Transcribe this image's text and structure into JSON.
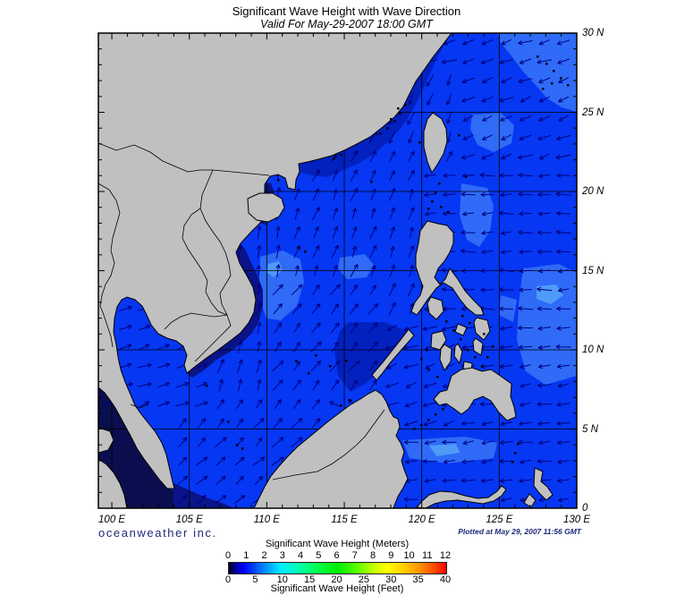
{
  "title": "Significant Wave Height with Wave Direction",
  "subtitle": "Valid For May-29-2007 18:00 GMT",
  "branding": "oceanweather inc.",
  "plotted_at": "Plotted at May 29, 2007 11:56 GMT",
  "axes": {
    "lon_tick_values": [
      100,
      105,
      110,
      115,
      120,
      125,
      130
    ],
    "lon_tick_labels": [
      "100 E",
      "105 E",
      "110 E",
      "115 E",
      "120 E",
      "125 E",
      "130 E"
    ],
    "lat_tick_values": [
      30,
      25,
      20,
      15,
      10,
      5,
      0
    ],
    "lat_tick_labels": [
      "30 N",
      "25 N",
      "20 N",
      "15 N",
      "10 N",
      "5 N",
      "0"
    ]
  },
  "legend": {
    "meters_title": "Significant Wave Height (Meters)",
    "feet_title": "Significant Wave Height (Feet)",
    "meters_ticks": [
      "0",
      "1",
      "2",
      "3",
      "4",
      "5",
      "6",
      "7",
      "8",
      "9",
      "10",
      "11",
      "12"
    ],
    "feet_ticks": [
      "0",
      "5",
      "10",
      "15",
      "20",
      "25",
      "30",
      "35",
      "40"
    ]
  },
  "map": {
    "colors": {
      "land": "#c0c0c0",
      "coastline": "#000000",
      "border_line": "#000000",
      "ocean_base": "#0637f2",
      "ocean_light": "#2f6bf7",
      "ocean_lighter": "#4e9bf8",
      "ocean_dark": "#0321be",
      "ocean_navy": "#0a1388",
      "ocean_darkest": "#0b0e4e",
      "arrow": "#000080",
      "grid": "#000000",
      "islet": "#000000"
    },
    "arrow_regions": [
      [
        99,
        104.5,
        0,
        6,
        null
      ],
      [
        99.5,
        105.8,
        6,
        13.8,
        72
      ],
      [
        104,
        113.5,
        0,
        3,
        50
      ],
      [
        104,
        113.5,
        3,
        7.5,
        42
      ],
      [
        113.5,
        117.5,
        3,
        7.5,
        300
      ],
      [
        105,
        110.5,
        7.5,
        14,
        15
      ],
      [
        110.5,
        118,
        7.5,
        14,
        38
      ],
      [
        105,
        111,
        14,
        22,
        8
      ],
      [
        111,
        117.5,
        14,
        20,
        22
      ],
      [
        111,
        117.5,
        20,
        23.5,
        30
      ],
      [
        117.5,
        122,
        22.5,
        27.5,
        205
      ],
      [
        110,
        117.5,
        23.5,
        27.5,
        215
      ],
      [
        99,
        130,
        27.5,
        30,
        252
      ],
      [
        122,
        130,
        22,
        27.5,
        250
      ],
      [
        120,
        130,
        12,
        22,
        268
      ],
      [
        122,
        130,
        5,
        12,
        263
      ],
      [
        117.5,
        122,
        12,
        20,
        20
      ],
      [
        117,
        122,
        5,
        12,
        250
      ],
      [
        113.5,
        130,
        0,
        5,
        265
      ]
    ],
    "arrow_default_dir": 35
  }
}
